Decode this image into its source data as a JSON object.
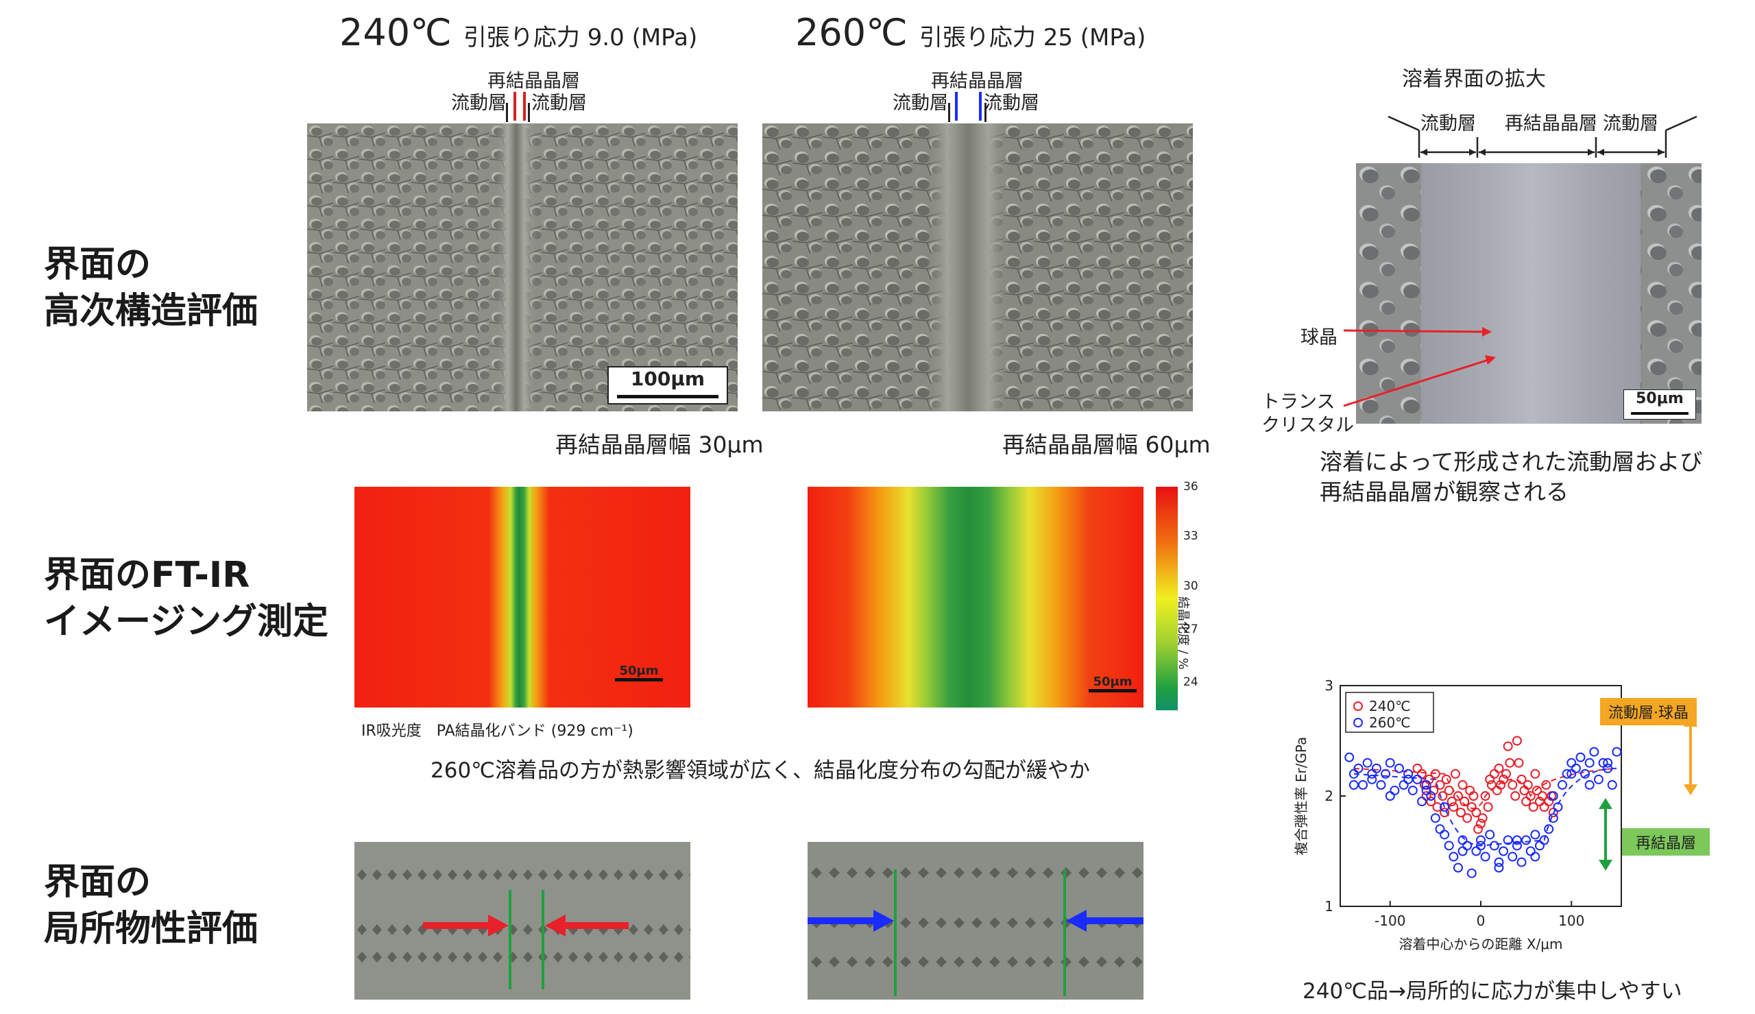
{
  "rows": {
    "row1_label": [
      "界面の",
      "高次構造評価"
    ],
    "row2_label": [
      "界面のFT-IR",
      "イメージング測定"
    ],
    "row3_label": [
      "界面の",
      "局所物性評価"
    ]
  },
  "conditions": {
    "left": {
      "temp": "240℃",
      "stress": "引張り応力 9.0 (MPa)"
    },
    "right": {
      "temp": "260℃",
      "stress": "引張り応力 25 (MPa)"
    }
  },
  "layer_labels": {
    "recryst": "再結晶晶層",
    "flow_left": "流動層",
    "flow_right": "流動層"
  },
  "micrograph": {
    "scale_left": "100μm",
    "width_left": "再結晶晶層幅 30μm",
    "width_right": "再結晶晶層幅 60μm"
  },
  "enlarged": {
    "title": "溶着界面の拡大",
    "flow_left": "流動層",
    "recryst": "再結晶晶層",
    "flow_right": "流動層",
    "spherulite": "球晶",
    "transcrystal": [
      "トランス",
      "クリスタル"
    ],
    "scale": "50μm",
    "caption": [
      "溶着によって形成された流動層および",
      "再結晶晶層が観察される"
    ]
  },
  "ftir": {
    "scale": "50μm",
    "colorbar_ticks": [
      "36",
      "33",
      "30",
      "27",
      "24"
    ],
    "colorbar_label": "結晶化度 / %",
    "band_note": "IR吸光度　PA結晶化バンド (929  cm⁻¹)",
    "conclusion": "260℃溶着品の方が熱影響領域が広く、結晶化度分布の勾配が緩やか"
  },
  "colors": {
    "red": "#e8202a",
    "blue": "#1a2bff",
    "green": "#1fa040",
    "orange": "#f5a623",
    "lightgreen": "#7cc85a"
  },
  "chart_data": {
    "type": "scatter",
    "xlabel": "溶着中心からの距離 X/μm",
    "ylabel": "複合弾性率 Er/GPa",
    "xlim": [
      -155,
      155
    ],
    "ylim": [
      1,
      3
    ],
    "xticks": [
      "-100",
      "0",
      "100"
    ],
    "yticks": [
      "1",
      "2",
      "3"
    ],
    "legend": [
      "240℃",
      "260℃"
    ],
    "annotations": {
      "upper": "流動層·球晶",
      "lower": "再結晶層"
    },
    "caption": "240℃品→局所的に応力が集中しやすい",
    "series": [
      {
        "name": "240℃",
        "color": "#e8202a",
        "x": [
          -70,
          -65,
          -62,
          -60,
          -57,
          -55,
          -52,
          -50,
          -48,
          -45,
          -42,
          -40,
          -38,
          -35,
          -32,
          -30,
          -28,
          -25,
          -22,
          -20,
          -18,
          -15,
          -12,
          -10,
          -8,
          -5,
          -3,
          0,
          2,
          5,
          8,
          10,
          12,
          15,
          18,
          20,
          22,
          25,
          28,
          30,
          32,
          35,
          38,
          40,
          42,
          45,
          48,
          50,
          52,
          55,
          58,
          60,
          62,
          65,
          68,
          70,
          72,
          75,
          78,
          80
        ],
        "y": [
          2.25,
          2.2,
          2.1,
          2.0,
          2.15,
          1.95,
          2.05,
          2.2,
          1.9,
          2.1,
          2.0,
          1.85,
          2.15,
          2.05,
          1.95,
          1.9,
          2.2,
          2.0,
          1.85,
          2.1,
          1.95,
          1.8,
          2.05,
          1.9,
          2.0,
          1.85,
          1.7,
          1.75,
          1.8,
          2.0,
          1.9,
          2.15,
          2.1,
          2.2,
          2.05,
          2.25,
          2.1,
          2.15,
          2.2,
          2.45,
          2.3,
          2.1,
          2.0,
          2.5,
          2.3,
          2.15,
          2.05,
          1.95,
          2.1,
          2.0,
          1.9,
          2.2,
          2.05,
          1.95,
          2.0,
          1.9,
          2.1,
          1.95,
          2.0,
          1.85
        ]
      },
      {
        "name": "260℃",
        "color": "#1a2bff",
        "x": [
          -145,
          -140,
          -135,
          -130,
          -125,
          -120,
          -115,
          -110,
          -105,
          -100,
          -95,
          -90,
          -85,
          -80,
          -75,
          -70,
          -65,
          -60,
          -55,
          -50,
          -45,
          -40,
          -35,
          -30,
          -25,
          -20,
          -15,
          -10,
          -5,
          0,
          5,
          10,
          15,
          20,
          25,
          30,
          35,
          40,
          45,
          50,
          55,
          60,
          65,
          70,
          75,
          80,
          85,
          90,
          95,
          100,
          105,
          110,
          115,
          120,
          125,
          130,
          135,
          140,
          145,
          150,
          -140,
          -120,
          -100,
          -80,
          -60,
          -40,
          -20,
          0,
          20,
          40,
          60,
          80,
          100,
          120,
          140
        ],
        "y": [
          2.35,
          2.2,
          2.25,
          2.1,
          2.3,
          2.15,
          2.25,
          2.1,
          2.2,
          2.3,
          2.05,
          2.25,
          2.1,
          2.2,
          2.05,
          2.15,
          1.95,
          2.1,
          2.0,
          1.8,
          1.7,
          1.65,
          1.55,
          1.45,
          1.35,
          1.6,
          1.55,
          1.3,
          1.5,
          1.6,
          1.45,
          1.65,
          1.55,
          1.4,
          1.5,
          1.6,
          1.45,
          1.55,
          1.4,
          1.6,
          1.5,
          1.65,
          1.55,
          1.6,
          1.7,
          1.8,
          1.9,
          2.1,
          2.2,
          2.3,
          2.25,
          2.35,
          2.2,
          2.3,
          2.4,
          2.15,
          2.3,
          2.25,
          2.1,
          2.4,
          2.1,
          2.2,
          2.0,
          2.15,
          2.05,
          1.9,
          1.5,
          1.55,
          1.35,
          1.6,
          1.45,
          2.0,
          2.2,
          2.1,
          2.3
        ]
      }
    ]
  }
}
